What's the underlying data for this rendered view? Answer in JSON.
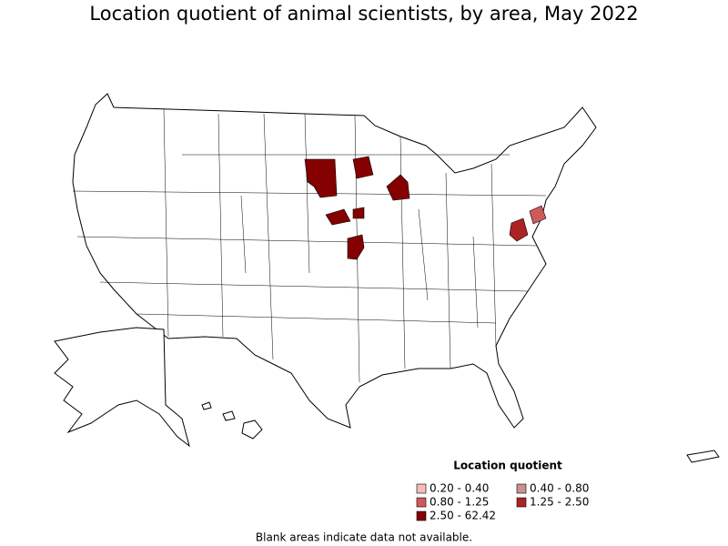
{
  "title": "Location quotient of animal scientists, by area, May 2022",
  "legend": {
    "title": "Location quotient",
    "items": [
      {
        "label": "0.20 - 0.40",
        "color": "#f5bcbc"
      },
      {
        "label": "0.40 - 0.80",
        "color": "#c99191"
      },
      {
        "label": "0.80 - 1.25",
        "color": "#d05a5a"
      },
      {
        "label": "1.25 - 2.50",
        "color": "#ad2323"
      },
      {
        "label": "2.50 - 62.42",
        "color": "#850000"
      }
    ]
  },
  "note": "Blank areas indicate data not available."
}
